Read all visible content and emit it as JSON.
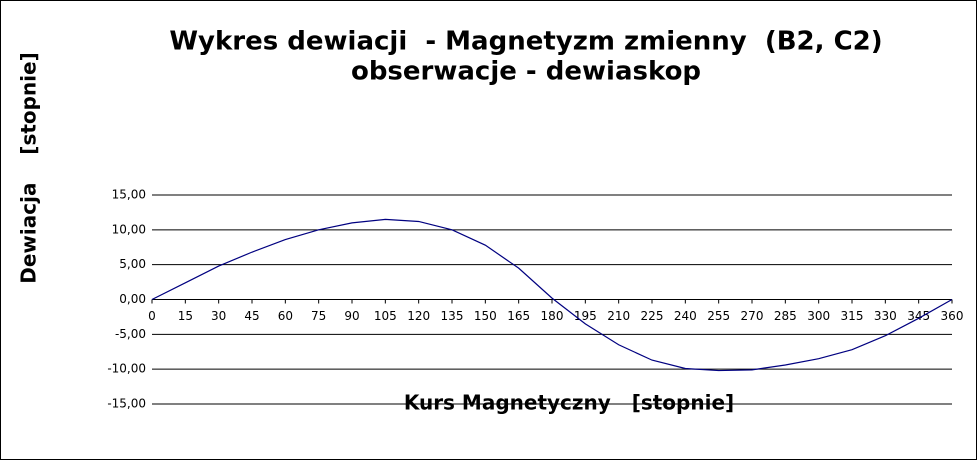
{
  "chart_data": {
    "type": "line",
    "title": "Wykres dewiacji  - Magnetyzm zmienny  (B2, C2)",
    "subtitle": "obserwacje - dewiaskop",
    "x_label": "Kurs Magnetyczny   [stopnie]",
    "y_label": "Dewiacja    [stopnie]",
    "x": [
      0,
      15,
      30,
      45,
      60,
      75,
      90,
      105,
      120,
      135,
      150,
      165,
      180,
      195,
      210,
      225,
      240,
      255,
      270,
      285,
      300,
      315,
      330,
      345,
      360
    ],
    "values": [
      0,
      2.4,
      4.8,
      6.8,
      8.6,
      10.0,
      11.0,
      11.5,
      11.2,
      10.0,
      7.8,
      4.5,
      0.2,
      -3.5,
      -6.5,
      -8.7,
      -9.9,
      -10.2,
      -10.1,
      -9.4,
      -8.5,
      -7.2,
      -5.2,
      -2.7,
      0
    ],
    "color": "#000080",
    "xlim": [
      0,
      360
    ],
    "xticks": [
      0,
      15,
      30,
      45,
      60,
      75,
      90,
      105,
      120,
      135,
      150,
      165,
      180,
      195,
      210,
      225,
      240,
      255,
      270,
      285,
      300,
      315,
      330,
      345,
      360
    ],
    "ylim": [
      -15,
      15
    ],
    "yticks": [
      {
        "value": -15,
        "label": "-15,00"
      },
      {
        "value": -10,
        "label": "-10,00"
      },
      {
        "value": -5,
        "label": "-5,00"
      },
      {
        "value": 0,
        "label": "0,00"
      },
      {
        "value": 5,
        "label": "5,00"
      },
      {
        "value": 10,
        "label": "10,00"
      },
      {
        "value": 15,
        "label": "15,00"
      }
    ],
    "grid": true
  }
}
